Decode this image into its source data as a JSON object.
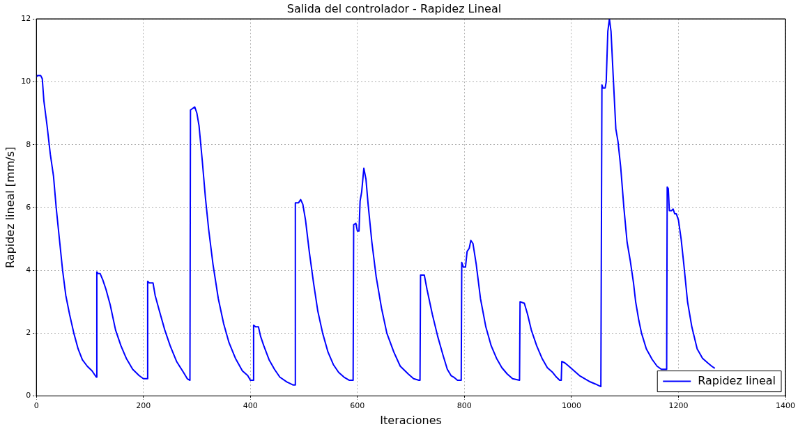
{
  "chart_data": {
    "type": "line",
    "title": "Salida del controlador - Rapidez Lineal",
    "xlabel": "Iteraciones",
    "ylabel": "Rapidez lineal [mm/s]",
    "xlim": [
      0,
      1400
    ],
    "xticks": [
      0,
      200,
      400,
      600,
      800,
      1000,
      1200,
      1400
    ],
    "ylim": [
      0,
      12
    ],
    "yticks": [
      0,
      2,
      4,
      6,
      8,
      10,
      12
    ],
    "grid": true,
    "legend": "bottom right",
    "series": [
      {
        "name": "Rapidez lineal",
        "color": "#0000ff",
        "x": [
          0,
          2,
          8,
          11,
          14,
          20,
          26,
          32,
          37,
          43,
          49,
          55,
          62,
          70,
          78,
          86,
          95,
          104,
          112,
          113,
          115,
          119,
          124,
          130,
          138,
          148,
          158,
          168,
          180,
          192,
          200,
          207,
          208,
          211,
          218,
          222,
          230,
          240,
          250,
          262,
          275,
          282,
          287,
          288,
          292,
          296,
          300,
          304,
          310,
          316,
          322,
          330,
          340,
          350,
          360,
          372,
          385,
          395,
          400,
          405,
          406,
          410,
          415,
          419,
          425,
          435,
          445,
          455,
          468,
          480,
          483,
          484,
          490,
          494,
          498,
          503,
          510,
          518,
          526,
          535,
          545,
          555,
          565,
          575,
          585,
          592,
          593,
          597,
          600,
          603,
          605,
          608,
          612,
          616,
          620,
          627,
          635,
          645,
          655,
          668,
          680,
          695,
          705,
          715,
          717,
          718,
          725,
          730,
          740,
          750,
          760,
          768,
          775,
          780,
          787,
          794,
          795,
          798,
          802,
          805,
          809,
          812,
          816,
          822,
          830,
          840,
          850,
          860,
          870,
          880,
          890,
          903,
          904,
          912,
          918,
          925,
          935,
          945,
          955,
          965,
          972,
          978,
          981,
          982,
          988,
          995,
          1005,
          1015,
          1025,
          1035,
          1045,
          1055,
          1056,
          1057,
          1059,
          1063,
          1065,
          1068,
          1071,
          1074,
          1078,
          1083,
          1087,
          1092,
          1098,
          1104,
          1110,
          1116,
          1120,
          1126,
          1131,
          1140,
          1151,
          1160,
          1168,
          1178,
          1179,
          1181,
          1183,
          1187,
          1190,
          1193,
          1196,
          1200,
          1205,
          1210,
          1217,
          1225,
          1235,
          1245,
          1255,
          1262,
          1268
        ],
        "values": [
          10.15,
          10.2,
          10.2,
          10.1,
          9.4,
          8.6,
          7.7,
          7.0,
          6.0,
          5.0,
          4.0,
          3.2,
          2.6,
          2.0,
          1.5,
          1.15,
          0.95,
          0.8,
          0.6,
          3.95,
          3.9,
          3.9,
          3.7,
          3.4,
          2.9,
          2.1,
          1.6,
          1.2,
          0.85,
          0.65,
          0.55,
          0.55,
          3.65,
          3.6,
          3.6,
          3.2,
          2.7,
          2.1,
          1.6,
          1.1,
          0.75,
          0.55,
          0.5,
          9.1,
          9.15,
          9.2,
          9.0,
          8.6,
          7.5,
          6.3,
          5.3,
          4.2,
          3.1,
          2.3,
          1.7,
          1.2,
          0.8,
          0.65,
          0.5,
          0.5,
          2.25,
          2.2,
          2.2,
          1.9,
          1.6,
          1.15,
          0.85,
          0.6,
          0.45,
          0.35,
          0.35,
          6.15,
          6.15,
          6.25,
          6.1,
          5.6,
          4.6,
          3.6,
          2.7,
          2.0,
          1.4,
          1.0,
          0.75,
          0.6,
          0.5,
          0.5,
          5.45,
          5.5,
          5.25,
          5.25,
          6.2,
          6.5,
          7.25,
          6.9,
          6.1,
          4.9,
          3.8,
          2.8,
          2.0,
          1.4,
          0.95,
          0.7,
          0.55,
          0.5,
          0.5,
          3.85,
          3.85,
          3.4,
          2.6,
          1.9,
          1.3,
          0.85,
          0.65,
          0.6,
          0.5,
          0.5,
          4.25,
          4.1,
          4.1,
          4.6,
          4.7,
          4.95,
          4.85,
          4.2,
          3.1,
          2.2,
          1.6,
          1.2,
          0.9,
          0.7,
          0.55,
          0.5,
          3.0,
          2.95,
          2.6,
          2.1,
          1.6,
          1.2,
          0.9,
          0.75,
          0.6,
          0.5,
          0.5,
          1.1,
          1.05,
          0.95,
          0.8,
          0.65,
          0.55,
          0.45,
          0.38,
          0.3,
          0.3,
          9.9,
          9.8,
          9.8,
          10.0,
          11.6,
          12.0,
          11.6,
          10.2,
          8.5,
          8.1,
          7.3,
          6.0,
          4.9,
          4.3,
          3.6,
          3.0,
          2.4,
          2.0,
          1.5,
          1.16,
          0.95,
          0.85,
          0.85,
          6.65,
          6.6,
          5.9,
          5.9,
          5.95,
          5.8,
          5.8,
          5.6,
          5.0,
          4.2,
          3.0,
          2.2,
          1.5,
          1.2,
          1.05,
          0.95,
          0.88
        ]
      }
    ]
  }
}
